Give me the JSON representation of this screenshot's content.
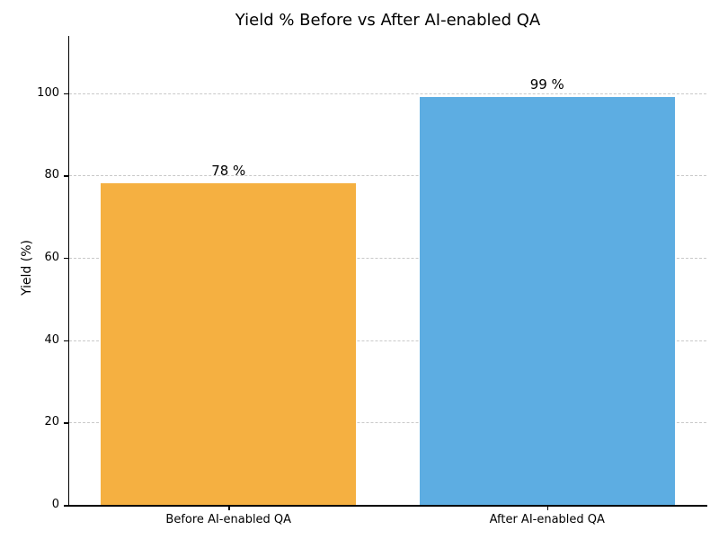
{
  "chart_data": {
    "type": "bar",
    "title": "Yield % Before vs After AI-enabled QA",
    "categories": [
      "Before AI-enabled QA",
      "After AI-enabled QA"
    ],
    "values": [
      78,
      99
    ],
    "bar_labels": [
      "78 %",
      "99 %"
    ],
    "bar_colors": [
      "#F5B041",
      "#5DADE2"
    ],
    "xlabel": "",
    "ylabel": "Yield (%)",
    "yticks": [
      0,
      20,
      40,
      60,
      80,
      100
    ],
    "ylim": [
      0,
      113.85
    ],
    "bar_width_fraction": 0.8,
    "grid": "horizontal-dashed",
    "grid_color": "#c9c9c9",
    "legend_position": "none"
  },
  "colors": {
    "background": "#ffffff",
    "axis": "#000000",
    "text": "#000000"
  }
}
